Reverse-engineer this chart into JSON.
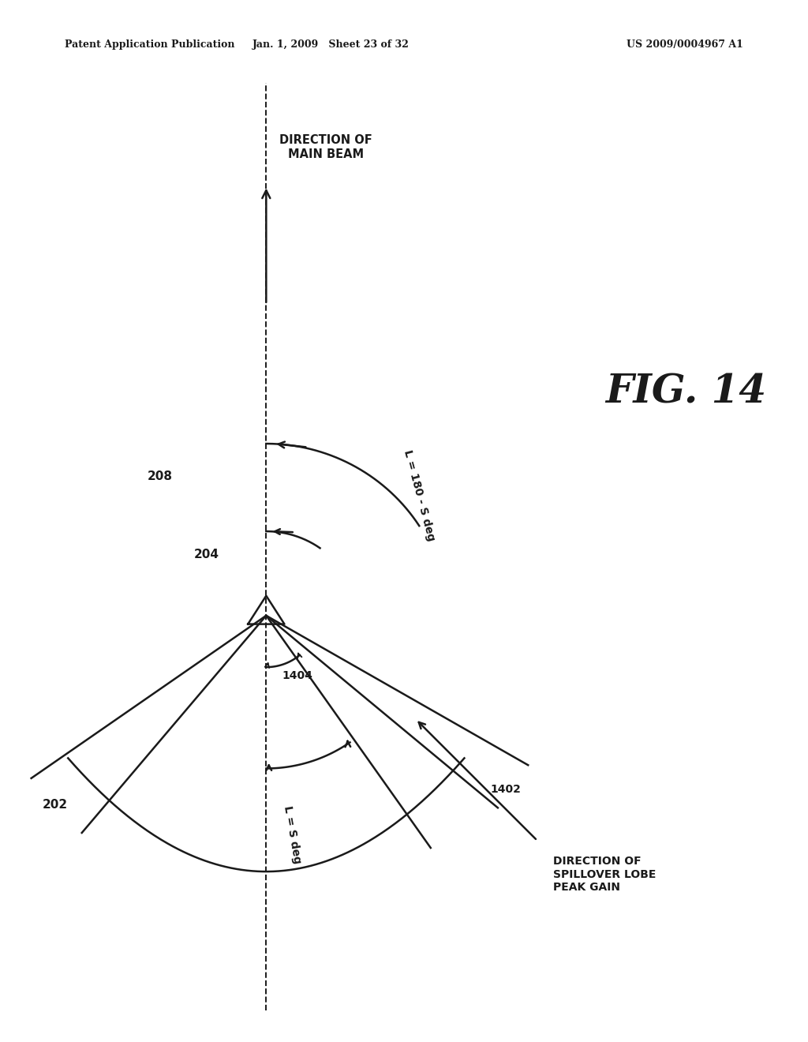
{
  "header_left": "Patent Application Publication",
  "header_center": "Jan. 1, 2009   Sheet 23 of 32",
  "header_right": "US 2009/0004967 A1",
  "fig_label": "FIG. 14",
  "title_text": "DIRECTION OF\nMAIN BEAM",
  "label_202": "202",
  "label_204": "204",
  "label_208": "208",
  "label_1402": "1402",
  "label_1404": "1404",
  "label_L_S": "L = S deg",
  "label_L_180_S": "L = 180 - S deg",
  "label_spillover": "DIRECTION OF\nSPILLOVER LOBE\nPEAK GAIN",
  "bg_color": "#ffffff",
  "line_color": "#1a1a1a"
}
